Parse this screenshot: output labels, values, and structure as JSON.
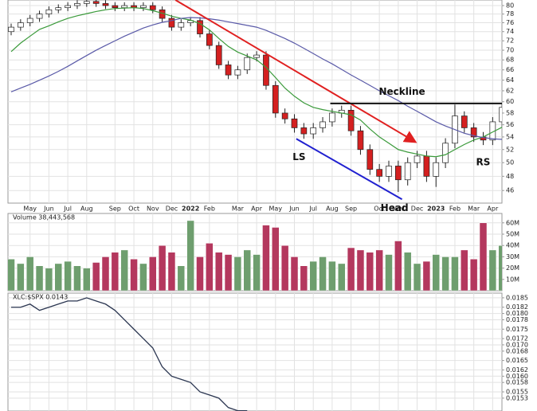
{
  "chart_data": [
    {
      "type": "candlestick",
      "categories": [
        null,
        null,
        "May",
        null,
        "Jun",
        null,
        "Jul",
        null,
        "Aug",
        null,
        null,
        "Sep",
        null,
        "Oct",
        null,
        "Nov",
        null,
        "Dec",
        null,
        "2022",
        null,
        "Feb",
        null,
        null,
        "Mar",
        null,
        "Apr",
        null,
        "May",
        null,
        "Jun",
        null,
        "Jul",
        null,
        "Aug",
        null,
        "Sep",
        null,
        null,
        "Oct",
        null,
        "Nov",
        null,
        "Dec",
        null,
        "2023",
        null,
        "Feb",
        null,
        "Mar",
        null,
        "Apr",
        null
      ],
      "open": [
        74,
        75,
        76,
        77,
        78,
        79,
        79.5,
        80,
        80.5,
        81,
        80.5,
        80,
        79.5,
        80,
        79.5,
        80,
        79,
        77,
        75,
        76,
        76.5,
        73.5,
        71,
        67,
        65,
        66,
        68.5,
        69,
        63,
        58,
        57,
        55.5,
        54.5,
        55.5,
        56.5,
        58,
        58.5,
        55,
        52,
        49,
        48,
        49.5,
        47.5,
        50,
        51,
        48,
        50,
        53,
        57.5,
        55.5,
        54,
        53.5,
        56.5
      ],
      "high": [
        75.8,
        76.8,
        77.8,
        78.8,
        79.8,
        80.3,
        80.8,
        81.3,
        81.8,
        81.8,
        81.3,
        80.8,
        80.8,
        80.8,
        80.8,
        80.8,
        79.8,
        77.8,
        76.8,
        77.3,
        77.3,
        74.3,
        71.8,
        67.8,
        66.8,
        69.3,
        69.8,
        69.8,
        63.8,
        58.8,
        57.8,
        56.3,
        56.3,
        57.3,
        58.8,
        59.3,
        59.3,
        55.8,
        52.8,
        49.8,
        50.3,
        50.3,
        50.8,
        51.8,
        51.8,
        50.8,
        53.8,
        59.5,
        58.3,
        56.3,
        54.8,
        57.3,
        59.8
      ],
      "low": [
        73.2,
        74.2,
        75.2,
        76.2,
        77.2,
        78.2,
        78.7,
        79.2,
        79.7,
        79.7,
        79.2,
        78.7,
        78.7,
        78.7,
        78.7,
        78.2,
        76.2,
        74.2,
        74.2,
        75.2,
        72.7,
        70.2,
        66.2,
        64.2,
        64.2,
        65.2,
        67.7,
        62.2,
        57.2,
        56.2,
        54.7,
        53.7,
        53.7,
        54.7,
        55.7,
        57.2,
        54.2,
        51.2,
        48.2,
        47.2,
        47.2,
        45.8,
        46.7,
        49.2,
        47.2,
        46.5,
        49.2,
        52.2,
        54.7,
        53.2,
        52.7,
        52.7,
        55.7
      ],
      "close": [
        75,
        76,
        77,
        78,
        79,
        79.5,
        80,
        80.5,
        81,
        80.5,
        80,
        79.5,
        80,
        79.5,
        80,
        79,
        77,
        75,
        76,
        76.5,
        73.5,
        71,
        67,
        65,
        66,
        68.5,
        69,
        63,
        58,
        57,
        55.5,
        54.5,
        55.5,
        56.5,
        58,
        58.5,
        55,
        52,
        49,
        48,
        49.5,
        47.5,
        50,
        51,
        48,
        50,
        53,
        57.5,
        55.5,
        54,
        53.5,
        56.5,
        59
      ],
      "up_color": "#ffffff",
      "down_color": "#d42020",
      "lines": [
        {
          "color": "#3a9a3a",
          "values": [
            69.7,
            71.5,
            73,
            74.5,
            75.3,
            76.2,
            77,
            77.6,
            78.1,
            78.6,
            79,
            79.3,
            79.4,
            79.5,
            79.3,
            78.8,
            78.2,
            77.5,
            77,
            76.6,
            75.8,
            74.4,
            72.5,
            70.8,
            69.6,
            68.8,
            68,
            66.5,
            64.5,
            62.5,
            61,
            59.8,
            59,
            58.6,
            58.3,
            58,
            57.7,
            56.8,
            55.3,
            54,
            53,
            52,
            51.6,
            51.3,
            51,
            50.9,
            51.2,
            52,
            52.8,
            53.5,
            54,
            54.8,
            55.6
          ]
        },
        {
          "color": "#5a5aa8",
          "values": [
            61.8,
            62.5,
            63.2,
            64,
            64.8,
            65.7,
            66.7,
            67.8,
            68.9,
            70,
            71,
            72,
            73,
            73.9,
            74.8,
            75.5,
            76.1,
            76.5,
            77,
            77.2,
            77.1,
            76.9,
            76.6,
            76.2,
            75.8,
            75.4,
            75,
            74.3,
            73.4,
            72.5,
            71.5,
            70.4,
            69.3,
            68.2,
            67.2,
            66.1,
            65,
            64,
            63,
            62,
            61.1,
            60.2,
            59.2,
            58.3,
            57.4,
            56.5,
            55.8,
            55.2,
            54.6,
            54.2,
            53.9,
            53.7,
            53.6
          ]
        }
      ],
      "trendlines": [
        {
          "color": "#e02020",
          "x": [
            17.4,
            42.7
          ],
          "y": [
            81.35,
            53.3
          ],
          "arrow": true
        },
        {
          "color": "#2020d0",
          "x": [
            30.2,
            41.4
          ],
          "y": [
            53.7,
            44.8
          ],
          "arrow": false
        },
        {
          "color": "#111111",
          "x": [
            33.8,
            52.4
          ],
          "y": [
            59.7,
            59.7
          ],
          "arrow": false
        }
      ],
      "annotations": [
        {
          "text": "Neckline",
          "x": 41.4,
          "y": 61.8
        },
        {
          "text": "LS",
          "x": 30.5,
          "y": 50.8
        },
        {
          "text": "Head",
          "x": 40.6,
          "y": 43.6
        },
        {
          "text": "RS",
          "x": 50,
          "y": 50
        }
      ],
      "log_scale": true,
      "grid": true,
      "ylim": [
        44.3,
        81.35
      ],
      "yticks": [
        46,
        48,
        50,
        52,
        54,
        56,
        58,
        60,
        62,
        64,
        66,
        68,
        70,
        72,
        74,
        76,
        78,
        80
      ]
    },
    {
      "type": "bar",
      "title": "Volume 38,443,568",
      "values": [
        28000000,
        24000000,
        30000000,
        22000000,
        20000000,
        24000000,
        26000000,
        22000000,
        20000000,
        25000000,
        30000000,
        34000000,
        36000000,
        28000000,
        24000000,
        30000000,
        40000000,
        34000000,
        22000000,
        62000000,
        30000000,
        42000000,
        34000000,
        32000000,
        30000000,
        36000000,
        32000000,
        58000000,
        56000000,
        40000000,
        30000000,
        22000000,
        26000000,
        30000000,
        26000000,
        24000000,
        38000000,
        36000000,
        34000000,
        36000000,
        32000000,
        44000000,
        34000000,
        24000000,
        26000000,
        32000000,
        30000000,
        30000000,
        36000000,
        28000000,
        60000000,
        36000000,
        40000000
      ],
      "up_color": "#6e9e6e",
      "down_color": "#b4385e",
      "ylim": [
        0,
        68300000
      ],
      "yticks": [
        {
          "value": 10000000,
          "label": "10M"
        },
        {
          "value": 20000000,
          "label": "20M"
        },
        {
          "value": 30000000,
          "label": "30M"
        },
        {
          "value": 40000000,
          "label": "40M"
        },
        {
          "value": 50000000,
          "label": "50M"
        },
        {
          "value": 60000000,
          "label": "60M"
        }
      ],
      "grid": true
    },
    {
      "type": "line",
      "title": "XLC:$SPX 0.0143",
      "color": "#2a3550",
      "values": [
        0.0182,
        0.0182,
        0.0183,
        0.0181,
        0.0182,
        0.0183,
        0.0184,
        0.0184,
        0.0185,
        0.0184,
        0.0183,
        0.0181,
        0.0178,
        0.0175,
        0.0172,
        0.0169,
        0.0163,
        0.016,
        0.0159,
        0.0158,
        0.0155,
        0.0154,
        0.0153,
        0.015,
        0.0149,
        0.0149,
        null,
        null,
        null,
        null,
        null,
        null,
        null,
        null,
        null,
        null,
        null,
        null,
        null,
        null,
        null,
        null,
        null,
        null,
        null,
        null,
        null,
        null,
        null,
        null,
        null,
        null,
        null
      ],
      "ylim": [
        0.01489,
        0.01865
      ],
      "yticks": [
        0.0153,
        0.0155,
        0.0158,
        {
          "value": 0.016,
          "label": "0.0160"
        },
        0.0162,
        0.0165,
        0.0168,
        {
          "value": 0.017,
          "label": "0.0170"
        },
        0.0172,
        0.0175,
        0.0178,
        {
          "value": 0.018,
          "label": "0.0180"
        },
        0.0182,
        0.0185
      ],
      "grid": true
    }
  ]
}
